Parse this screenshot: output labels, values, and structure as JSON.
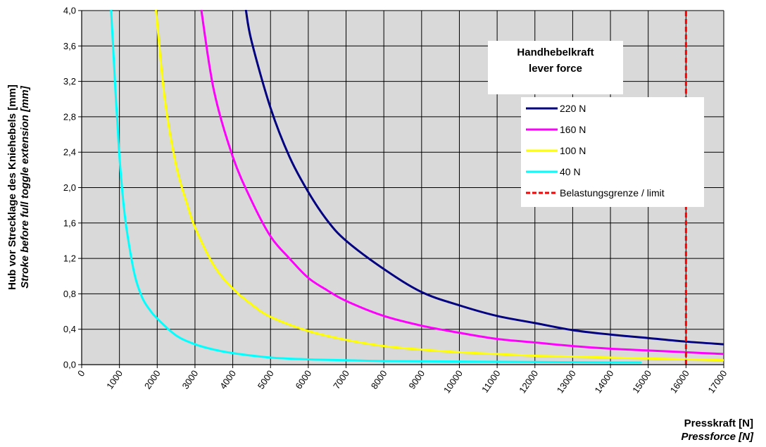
{
  "chart_data": {
    "type": "line",
    "xlabel": "Presskraft [N]",
    "xlabel_en": "Pressforce [N]",
    "ylabel": "Hub vor Strecklage des Kniehebels [mm]",
    "ylabel_en": "Stroke before full toggle extension [mm]",
    "xlim": [
      0,
      17000
    ],
    "ylim": [
      0,
      4.0
    ],
    "x_ticks": [
      0,
      1000,
      2000,
      3000,
      4000,
      5000,
      6000,
      7000,
      8000,
      9000,
      10000,
      11000,
      12000,
      13000,
      14000,
      15000,
      16000,
      17000
    ],
    "x_tick_labels": [
      "0",
      "1000",
      "2000",
      "3000",
      "4000",
      "5000",
      "6000",
      "7000",
      "8000",
      "9000",
      "10000",
      "11000",
      "12000",
      "13000",
      "14000",
      "15000",
      "16000",
      "17000"
    ],
    "y_ticks": [
      0,
      0.4,
      0.8,
      1.2,
      1.6,
      2.0,
      2.4,
      2.8,
      3.2,
      3.6,
      4.0
    ],
    "y_tick_labels": [
      "0,0",
      "0,4",
      "0,8",
      "1,2",
      "1,6",
      "2,0",
      "2,4",
      "2,8",
      "3,2",
      "3,6",
      "4,0"
    ],
    "grid": true,
    "plot_background": "#d9d9d9",
    "legend": {
      "title_line1": "Handhebelkraft",
      "title_line2": "lever force",
      "placement": "top-right",
      "entries": [
        "220 N",
        "160 N",
        "100 N",
        "40 N",
        "Belastungsgrenze / limit"
      ]
    },
    "series": [
      {
        "name": "220 N",
        "color": "#000080",
        "x": [
          4350,
          4500,
          5000,
          5500,
          6000,
          6500,
          7000,
          8000,
          9000,
          10000,
          11000,
          12000,
          13000,
          14000,
          15000,
          16000,
          17000
        ],
        "y": [
          4.0,
          3.65,
          2.9,
          2.35,
          1.95,
          1.63,
          1.4,
          1.08,
          0.82,
          0.67,
          0.55,
          0.47,
          0.39,
          0.34,
          0.3,
          0.26,
          0.23
        ]
      },
      {
        "name": "160 N",
        "color": "#ff00ff",
        "x": [
          3170,
          3500,
          4000,
          4500,
          5000,
          5500,
          6000,
          6500,
          7000,
          8000,
          9000,
          10000,
          11000,
          12000,
          13000,
          14000,
          15000,
          16000,
          17000
        ],
        "y": [
          4.0,
          3.1,
          2.35,
          1.85,
          1.45,
          1.2,
          0.98,
          0.84,
          0.72,
          0.55,
          0.44,
          0.36,
          0.29,
          0.25,
          0.21,
          0.18,
          0.16,
          0.14,
          0.12
        ]
      },
      {
        "name": "100 N",
        "color": "#ffff00",
        "x": [
          1970,
          2200,
          2500,
          2800,
          3000,
          3500,
          4000,
          4500,
          5000,
          6000,
          7000,
          8000,
          9000,
          10000,
          11000,
          12000,
          13000,
          14000,
          15000,
          16000,
          17000
        ],
        "y": [
          4.0,
          3.0,
          2.25,
          1.8,
          1.55,
          1.12,
          0.86,
          0.68,
          0.54,
          0.38,
          0.28,
          0.21,
          0.17,
          0.14,
          0.12,
          0.1,
          0.09,
          0.08,
          0.07,
          0.06,
          0.05
        ]
      },
      {
        "name": "40 N",
        "color": "#00ffff",
        "x": [
          780,
          850,
          900,
          950,
          1000,
          1100,
          1200,
          1400,
          1600,
          1800,
          2000,
          2500,
          3000,
          3500,
          4000,
          5000,
          6000,
          7000,
          8000,
          10000,
          12000,
          14000,
          14800
        ],
        "y": [
          4.0,
          3.45,
          3.05,
          2.7,
          2.35,
          1.85,
          1.5,
          1.02,
          0.76,
          0.62,
          0.52,
          0.33,
          0.23,
          0.17,
          0.13,
          0.08,
          0.06,
          0.05,
          0.04,
          0.035,
          0.03,
          0.025,
          0.025
        ]
      },
      {
        "name": "Belastungsgrenze / limit",
        "color": "#ff0000",
        "style": "dashed",
        "x": [
          16000,
          16000
        ],
        "y": [
          0,
          4.0
        ]
      }
    ]
  }
}
